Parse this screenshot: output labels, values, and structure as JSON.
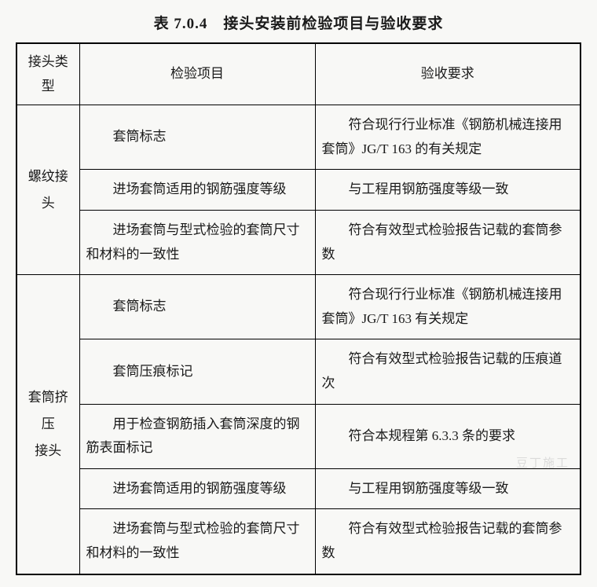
{
  "title": "表 7.0.4　接头安装前检验项目与验收要求",
  "headers": {
    "type": "接头类型",
    "inspection": "检验项目",
    "requirement": "验收要求"
  },
  "groups": [
    {
      "type_label": "螺纹接头",
      "rows": [
        {
          "inspection": "套筒标志",
          "requirement": "符合现行行业标准《钢筋机械连接用套筒》JG/T 163 的有关规定"
        },
        {
          "inspection": "进场套筒适用的钢筋强度等级",
          "requirement": "与工程用钢筋强度等级一致"
        },
        {
          "inspection": "进场套筒与型式检验的套筒尺寸和材料的一致性",
          "requirement": "符合有效型式检验报告记载的套筒参数"
        }
      ]
    },
    {
      "type_label": "套筒挤压\n接头",
      "rows": [
        {
          "inspection": "套筒标志",
          "requirement": "符合现行行业标准《钢筋机械连接用套筒》JG/T 163 有关规定"
        },
        {
          "inspection": "套筒压痕标记",
          "requirement": "符合有效型式检验报告记载的压痕道次"
        },
        {
          "inspection": "用于检查钢筋插入套筒深度的钢筋表面标记",
          "requirement": "符合本规程第 6.3.3 条的要求"
        },
        {
          "inspection": "进场套筒适用的钢筋强度等级",
          "requirement": "与工程用钢筋强度等级一致"
        },
        {
          "inspection": "进场套筒与型式检验的套筒尺寸和材料的一致性",
          "requirement": "符合有效型式检验报告记载的套筒参数"
        }
      ]
    }
  ],
  "watermark": "豆丁施工",
  "styling": {
    "background_color": "#f8f8f6",
    "border_color": "#000000",
    "text_color": "#1a1a1a",
    "title_fontsize": 19,
    "cell_fontsize": 17,
    "font_family": "SimSun",
    "col_widths": {
      "type": 80,
      "inspection": 300
    }
  }
}
